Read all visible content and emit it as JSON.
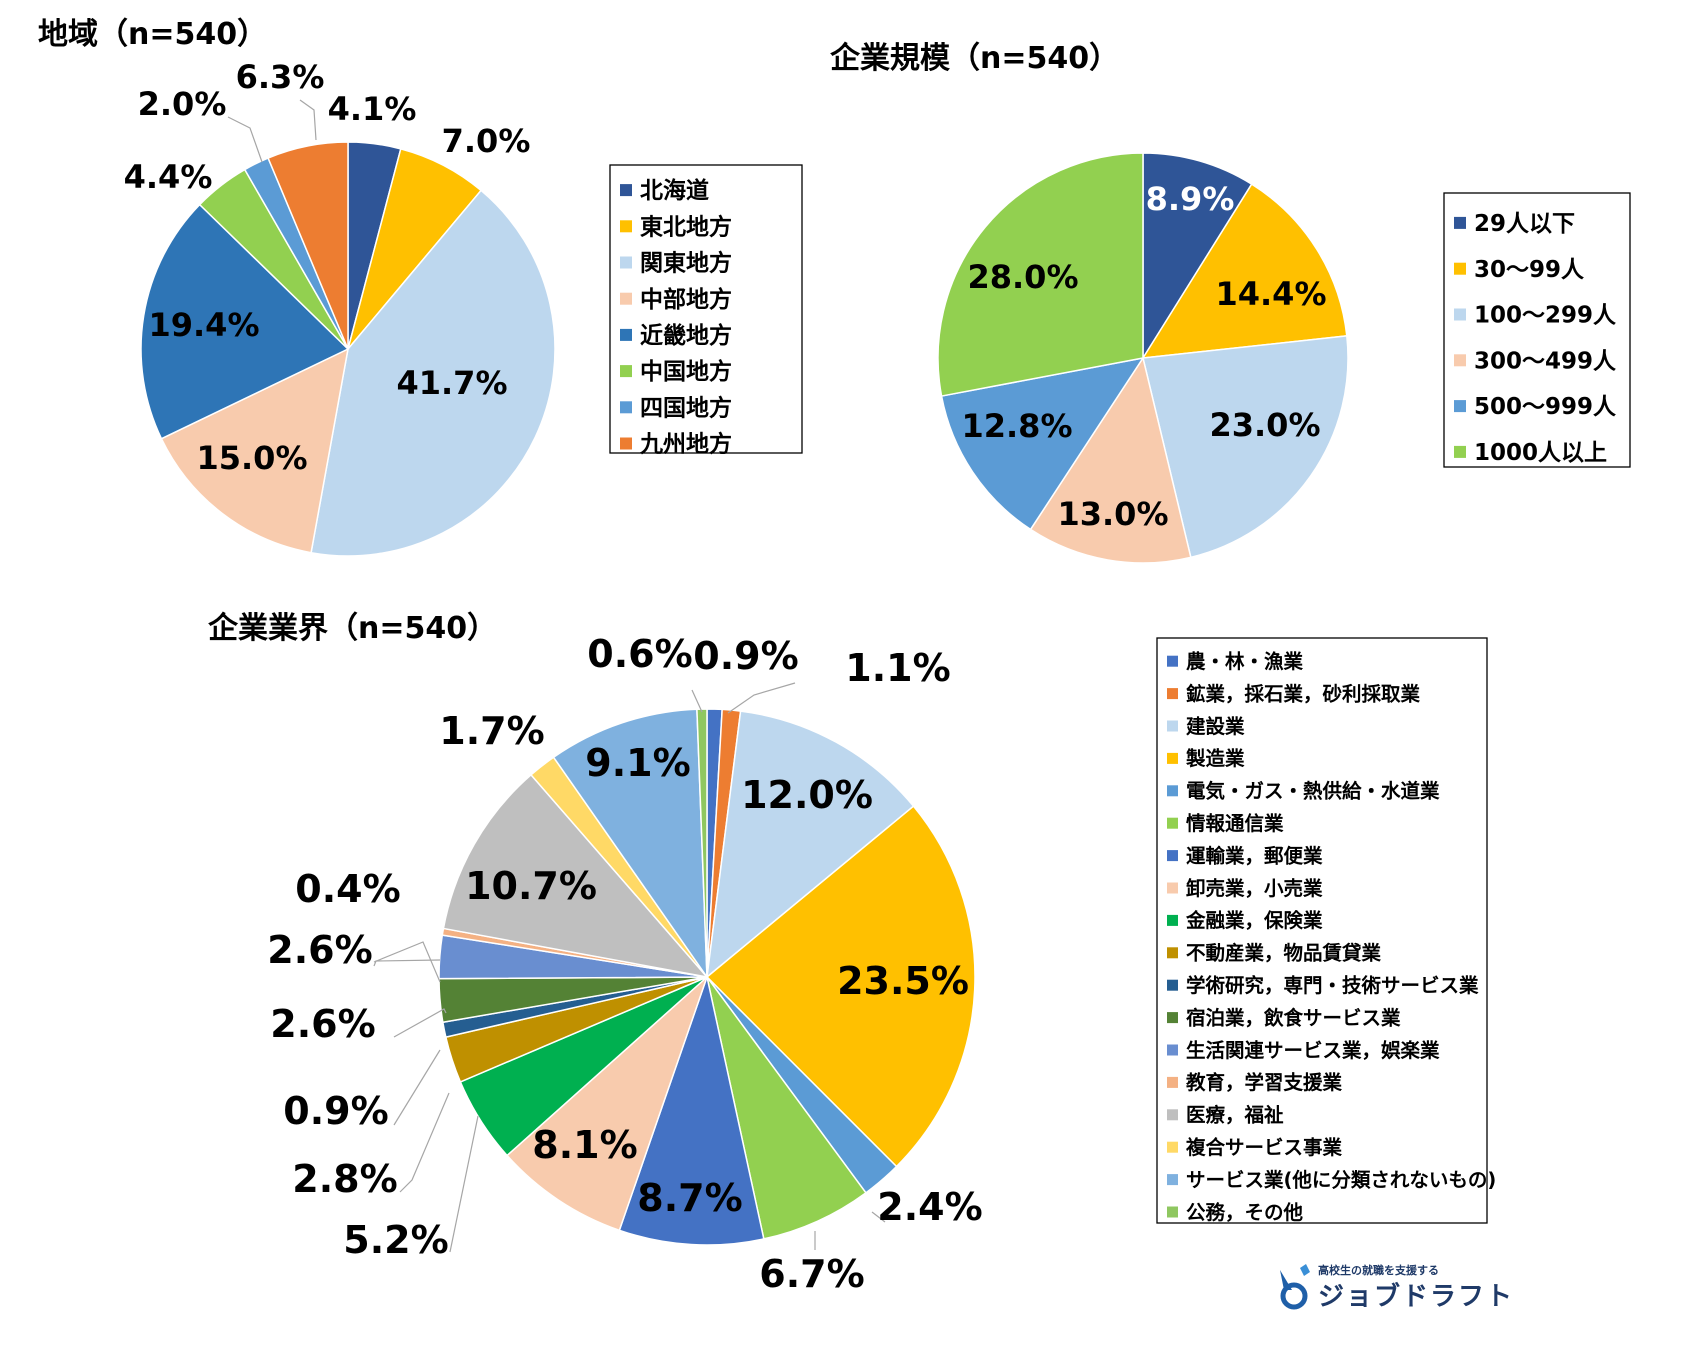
{
  "colors": {
    "navy": "#2f5597",
    "gold": "#ffc000",
    "lightblue": "#bdd7ee",
    "peach": "#f8cbad",
    "blue": "#2e75b6",
    "green": "#92d050",
    "midblue": "#5b9bd5",
    "orange": "#ed7d31"
  },
  "chart_data": [
    {
      "type": "pie",
      "title": "地域（n=540）",
      "unit": "%",
      "slices": [
        {
          "label": "北海道",
          "value": 4.1,
          "value_label": "4.1%",
          "color": "#2f5597"
        },
        {
          "label": "東北地方",
          "value": 7.0,
          "value_label": "7.0%",
          "color": "#ffc000"
        },
        {
          "label": "関東地方",
          "value": 41.7,
          "value_label": "41.7%",
          "color": "#bdd7ee"
        },
        {
          "label": "中部地方",
          "value": 15.0,
          "value_label": "15.0%",
          "color": "#f8cbad"
        },
        {
          "label": "近畿地方",
          "value": 19.4,
          "value_label": "19.4%",
          "color": "#2e75b6"
        },
        {
          "label": "中国地方",
          "value": 4.4,
          "value_label": "4.4%",
          "color": "#92d050"
        },
        {
          "label": "四国地方",
          "value": 2.0,
          "value_label": "2.0%",
          "color": "#5b9bd5"
        },
        {
          "label": "九州地方",
          "value": 6.3,
          "value_label": "6.3%",
          "color": "#ed7d31"
        }
      ],
      "legend_position": "right"
    },
    {
      "type": "pie",
      "title": "企業規模（n=540）",
      "unit": "%",
      "slices": [
        {
          "label": "29人以下",
          "value": 8.9,
          "value_label": "8.9%",
          "color": "#2f5597"
        },
        {
          "label": "30～99人",
          "value": 14.4,
          "value_label": "14.4%",
          "color": "#ffc000"
        },
        {
          "label": "100～299人",
          "value": 23.0,
          "value_label": "23.0%",
          "color": "#bdd7ee"
        },
        {
          "label": "300～499人",
          "value": 13.0,
          "value_label": "13.0%",
          "color": "#f8cbad"
        },
        {
          "label": "500～999人",
          "value": 12.8,
          "value_label": "12.8%",
          "color": "#5b9bd5"
        },
        {
          "label": "1000人以上",
          "value": 28.0,
          "value_label": "28.0%",
          "color": "#92d050"
        }
      ],
      "legend_position": "right"
    },
    {
      "type": "pie",
      "title": "企業業界（n=540）",
      "unit": "%",
      "slices": [
        {
          "label": "農・林・漁業",
          "value": 0.9,
          "value_label": "0.9%",
          "color": "#4472c4"
        },
        {
          "label": "鉱業，採石業，砂利採取業",
          "value": 1.1,
          "value_label": "1.1%",
          "color": "#ed7d31"
        },
        {
          "label": "建設業",
          "value": 12.0,
          "value_label": "12.0%",
          "color": "#bdd7ee"
        },
        {
          "label": "製造業",
          "value": 23.5,
          "value_label": "23.5%",
          "color": "#ffc000"
        },
        {
          "label": "電気・ガス・熱供給・水道業",
          "value": 2.4,
          "value_label": "2.4%",
          "color": "#5b9bd5"
        },
        {
          "label": "情報通信業",
          "value": 6.7,
          "value_label": "6.7%",
          "color": "#92d050"
        },
        {
          "label": "運輸業，郵便業",
          "value": 8.7,
          "value_label": "8.7%",
          "color": "#4472c4"
        },
        {
          "label": "卸売業，小売業",
          "value": 8.1,
          "value_label": "8.1%",
          "color": "#f8cbad"
        },
        {
          "label": "金融業，保険業",
          "value": 5.2,
          "value_label": "5.2%",
          "color": "#00b050"
        },
        {
          "label": "不動産業，物品賃貸業",
          "value": 2.8,
          "value_label": "2.8%",
          "color": "#bf9000"
        },
        {
          "label": "学術研究，専門・技術サービス業",
          "value": 0.9,
          "value_label": "0.9%",
          "color": "#255e91"
        },
        {
          "label": "宿泊業，飲食サービス業",
          "value": 2.6,
          "value_label": "2.6%",
          "color": "#548235"
        },
        {
          "label": "生活関連サービス業，娯楽業",
          "value": 2.6,
          "value_label": "2.6%",
          "color": "#698ed0"
        },
        {
          "label": "教育，学習支援業",
          "value": 0.4,
          "value_label": "0.4%",
          "color": "#f4b183"
        },
        {
          "label": "医療，福祉",
          "value": 10.7,
          "value_label": "10.7%",
          "color": "#bfbfbf"
        },
        {
          "label": "複合サービス事業",
          "value": 1.7,
          "value_label": "1.7%",
          "color": "#ffd966"
        },
        {
          "label": "サービス業(他に分類されないもの)",
          "value": 9.1,
          "value_label": "9.1%",
          "color": "#7fb1df"
        },
        {
          "label": "公務，その他",
          "value": 0.6,
          "value_label": "0.6%",
          "color": "#8fc760"
        }
      ],
      "legend_position": "right"
    }
  ],
  "logo": {
    "tagline": "高校生の就職を支援する",
    "name": "ジョブドラフト"
  }
}
